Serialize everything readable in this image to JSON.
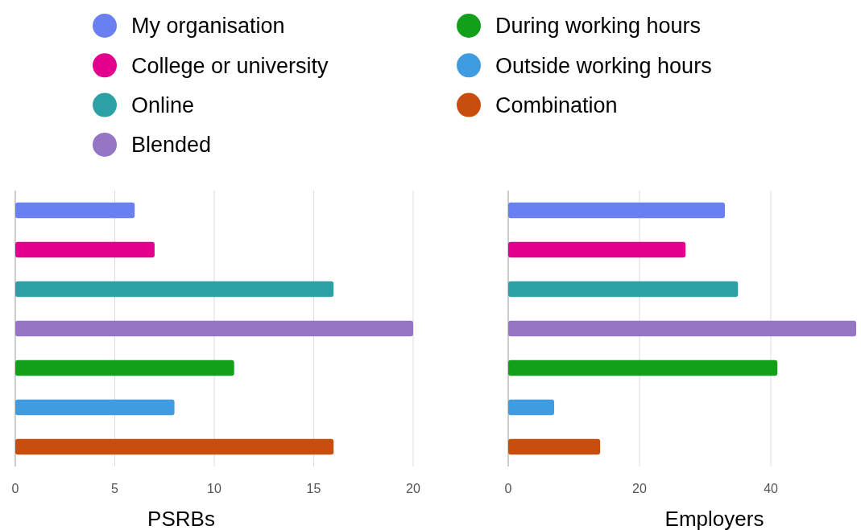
{
  "chart_data": [
    {
      "type": "bar",
      "orientation": "horizontal",
      "categories": [
        null
      ],
      "xlabel": "PSRBs",
      "xlim": [
        0,
        20
      ],
      "xticks": [
        0,
        5,
        10,
        15,
        20
      ],
      "grid": "x",
      "legend": "top",
      "series": [
        {
          "name": "My organisation",
          "color": "#6a7ff0",
          "values": [
            6
          ]
        },
        {
          "name": "College or university",
          "color": "#e3008c",
          "values": [
            7
          ]
        },
        {
          "name": "Online",
          "color": "#2ba1a5",
          "values": [
            16
          ]
        },
        {
          "name": "Blended",
          "color": "#9575c5",
          "values": [
            20
          ]
        },
        {
          "name": "During working hours",
          "color": "#12a01a",
          "values": [
            11
          ]
        },
        {
          "name": "Outside working hours",
          "color": "#3f9ce0",
          "values": [
            8
          ]
        },
        {
          "name": "Combination",
          "color": "#c84e0f",
          "values": [
            16
          ]
        }
      ]
    },
    {
      "type": "bar",
      "orientation": "horizontal",
      "categories": [
        null
      ],
      "xlabel": "Employers",
      "xlim": [
        0,
        53
      ],
      "xticks": [
        0,
        20,
        40
      ],
      "grid": "x",
      "series": [
        {
          "color": "#6a7ff0",
          "values": [
            33
          ]
        },
        {
          "color": "#e3008c",
          "values": [
            27
          ]
        },
        {
          "color": "#2ba1a5",
          "values": [
            35
          ]
        },
        {
          "color": "#9575c5",
          "values": [
            53
          ]
        },
        {
          "color": "#12a01a",
          "values": [
            41
          ]
        },
        {
          "color": "#3f9ce0",
          "values": [
            7
          ]
        },
        {
          "color": "#c84e0f",
          "values": [
            14
          ]
        }
      ]
    }
  ]
}
